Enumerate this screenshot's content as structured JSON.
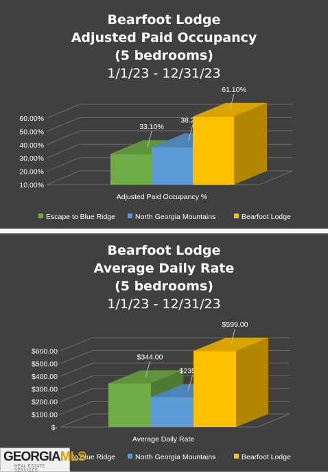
{
  "colors": {
    "background": "#404040",
    "gridline": "#6d6d6d",
    "text": "#ffffff",
    "series": [
      "#70ad47",
      "#5b9bd5",
      "#ffc000"
    ]
  },
  "chart_data": [
    {
      "type": "bar",
      "title": "Bearfoot Lodge",
      "title_line2": "Adjusted Paid Occupancy",
      "title_line3": "(5 bedrooms)",
      "subtitle": "1/1/23 - 12/31/23",
      "xlabel": "Adjusted Paid Occupancy %",
      "ylabel": "",
      "categories": [
        "Adjusted Paid Occupancy %"
      ],
      "series": [
        {
          "name": "Escape to Blue Ridge",
          "values": [
            33.1
          ],
          "label": "33.10%"
        },
        {
          "name": "North Georgia Mountains",
          "values": [
            38.2
          ],
          "label": "38.20%"
        },
        {
          "name": "Bearfoot Lodge",
          "values": [
            61.1
          ],
          "label": "61.10%"
        }
      ],
      "ylim": [
        10,
        60
      ],
      "yticks": [
        "10.00%",
        "20.00%",
        "30.00%",
        "40.00%",
        "50.00%",
        "60.00%"
      ],
      "grid": true,
      "three_d": true,
      "legend_position": "bottom"
    },
    {
      "type": "bar",
      "title": "Bearfoot Lodge",
      "title_line2": "Average Daily Rate",
      "title_line3": "(5 bedrooms)",
      "subtitle": "1/1/23 - 12/31/23",
      "xlabel": "Average Daily Rate",
      "ylabel": "",
      "categories": [
        "Average Daily Rate"
      ],
      "series": [
        {
          "name": "Escape to Blue Ridge",
          "values": [
            344
          ],
          "label": "$344.00"
        },
        {
          "name": "North Georgia Mountains",
          "values": [
            235
          ],
          "label": "$235.00"
        },
        {
          "name": "Bearfoot Lodge",
          "values": [
            599
          ],
          "label": "$599.00"
        }
      ],
      "ylim": [
        0,
        600
      ],
      "yticks": [
        "$-",
        "$100.00",
        "$200.00",
        "$300.00",
        "$400.00",
        "$500.00",
        "$600.00"
      ],
      "grid": true,
      "three_d": true,
      "legend_position": "bottom"
    }
  ],
  "watermark": {
    "brand_part1": "GEORGIA",
    "brand_part2": "MLS",
    "tagline": "REAL ESTATE SERVICES"
  }
}
